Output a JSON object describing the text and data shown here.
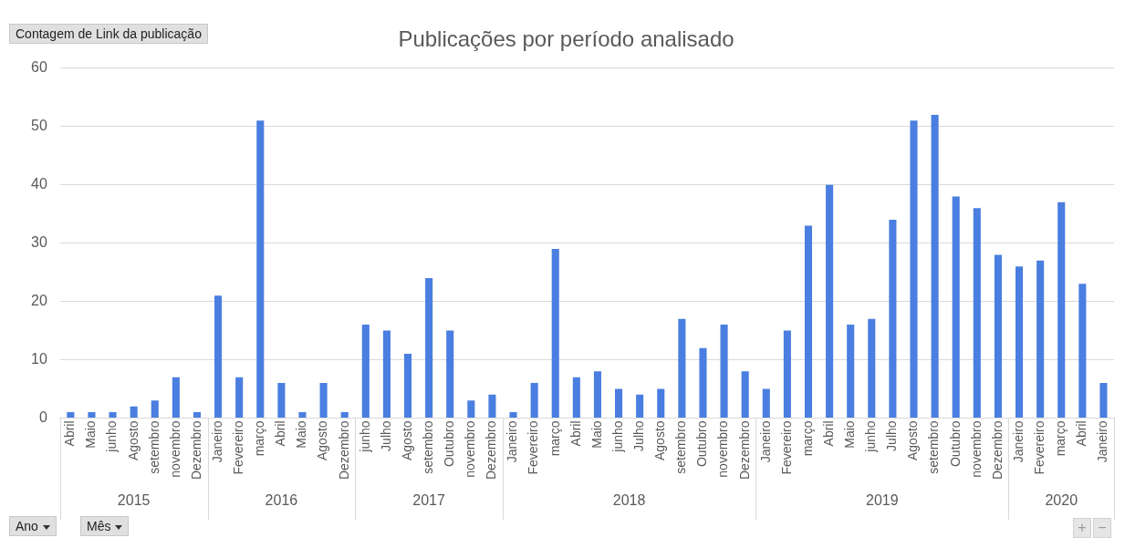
{
  "chart_data": {
    "type": "bar",
    "title": "Publicações por período analisado",
    "categories": [
      "Abril",
      "Maio",
      "junho",
      "Agosto",
      "setembro",
      "novembro",
      "Dezembro",
      "Janeiro",
      "Fevereiro",
      "março",
      "Abril",
      "Maio",
      "Agosto",
      "Dezembro",
      "junho",
      "Julho",
      "Agosto",
      "setembro",
      "Outubro",
      "novembro",
      "Dezembro",
      "Janeiro",
      "Fevereiro",
      "março",
      "Abril",
      "Maio",
      "junho",
      "Julho",
      "Agosto",
      "setembro",
      "Outubro",
      "novembro",
      "Dezembro",
      "Janeiro",
      "Fevereiro",
      "março",
      "Abril",
      "Maio",
      "junho",
      "Julho",
      "Agosto",
      "setembro",
      "Outubro",
      "novembro",
      "Dezembro",
      "Janeiro",
      "Fevereiro",
      "março",
      "Abril",
      "Janeiro"
    ],
    "values": [
      1,
      1,
      1,
      2,
      3,
      7,
      1,
      21,
      7,
      51,
      6,
      1,
      6,
      1,
      16,
      15,
      11,
      24,
      15,
      3,
      4,
      1,
      6,
      29,
      7,
      8,
      5,
      4,
      5,
      17,
      12,
      16,
      8,
      5,
      15,
      33,
      40,
      16,
      17,
      34,
      51,
      52,
      38,
      36,
      28,
      26,
      27,
      37,
      23,
      6
    ],
    "color": "#4a7ee0",
    "ylim": [
      0,
      60
    ],
    "yticks": [
      0,
      10,
      20,
      30,
      40,
      50,
      60
    ],
    "grid": "y",
    "legend": false,
    "annotations": [
      "Contagem de Link da publicação",
      "Ano",
      "Mês",
      "2015",
      "2016",
      "2017",
      "2018",
      "2019",
      "2020",
      "+",
      "−"
    ]
  }
}
